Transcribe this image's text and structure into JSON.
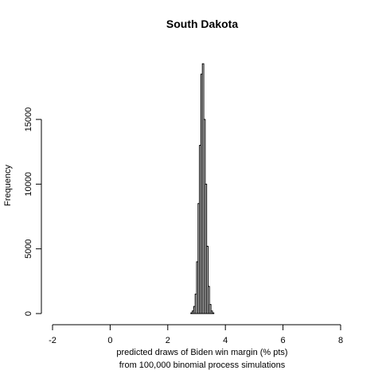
{
  "chart_data": {
    "type": "histogram",
    "title": "South Dakota",
    "xlabel_line1": "predicted draws of Biden win margin (% pts)",
    "xlabel_line2": "from 100,000 binomial process simulations",
    "ylabel": "Frequency",
    "xlim": [
      -2,
      8
    ],
    "ylim": [
      0,
      19000
    ],
    "x_ticks": [
      -2,
      0,
      2,
      4,
      6,
      8
    ],
    "y_ticks": [
      0,
      5000,
      10000,
      15000
    ],
    "x_tick_labels": [
      "-2",
      "0",
      "2",
      "4",
      "6",
      "8"
    ],
    "y_tick_labels": [
      "0",
      "5000",
      "10000",
      "15000"
    ],
    "bin_width": 0.05,
    "bins": [
      {
        "x0": 2.8,
        "count": 50
      },
      {
        "x0": 2.85,
        "count": 200
      },
      {
        "x0": 2.9,
        "count": 550
      },
      {
        "x0": 2.95,
        "count": 1500
      },
      {
        "x0": 3.0,
        "count": 4000
      },
      {
        "x0": 3.05,
        "count": 8500
      },
      {
        "x0": 3.1,
        "count": 13000
      },
      {
        "x0": 3.15,
        "count": 18500
      },
      {
        "x0": 3.2,
        "count": 19300
      },
      {
        "x0": 3.25,
        "count": 15000
      },
      {
        "x0": 3.3,
        "count": 10000
      },
      {
        "x0": 3.35,
        "count": 5200
      },
      {
        "x0": 3.4,
        "count": 2100
      },
      {
        "x0": 3.45,
        "count": 700
      },
      {
        "x0": 3.5,
        "count": 200
      },
      {
        "x0": 3.55,
        "count": 50
      }
    ],
    "bar_fill": "#ffffff",
    "bar_stroke": "#000000"
  }
}
